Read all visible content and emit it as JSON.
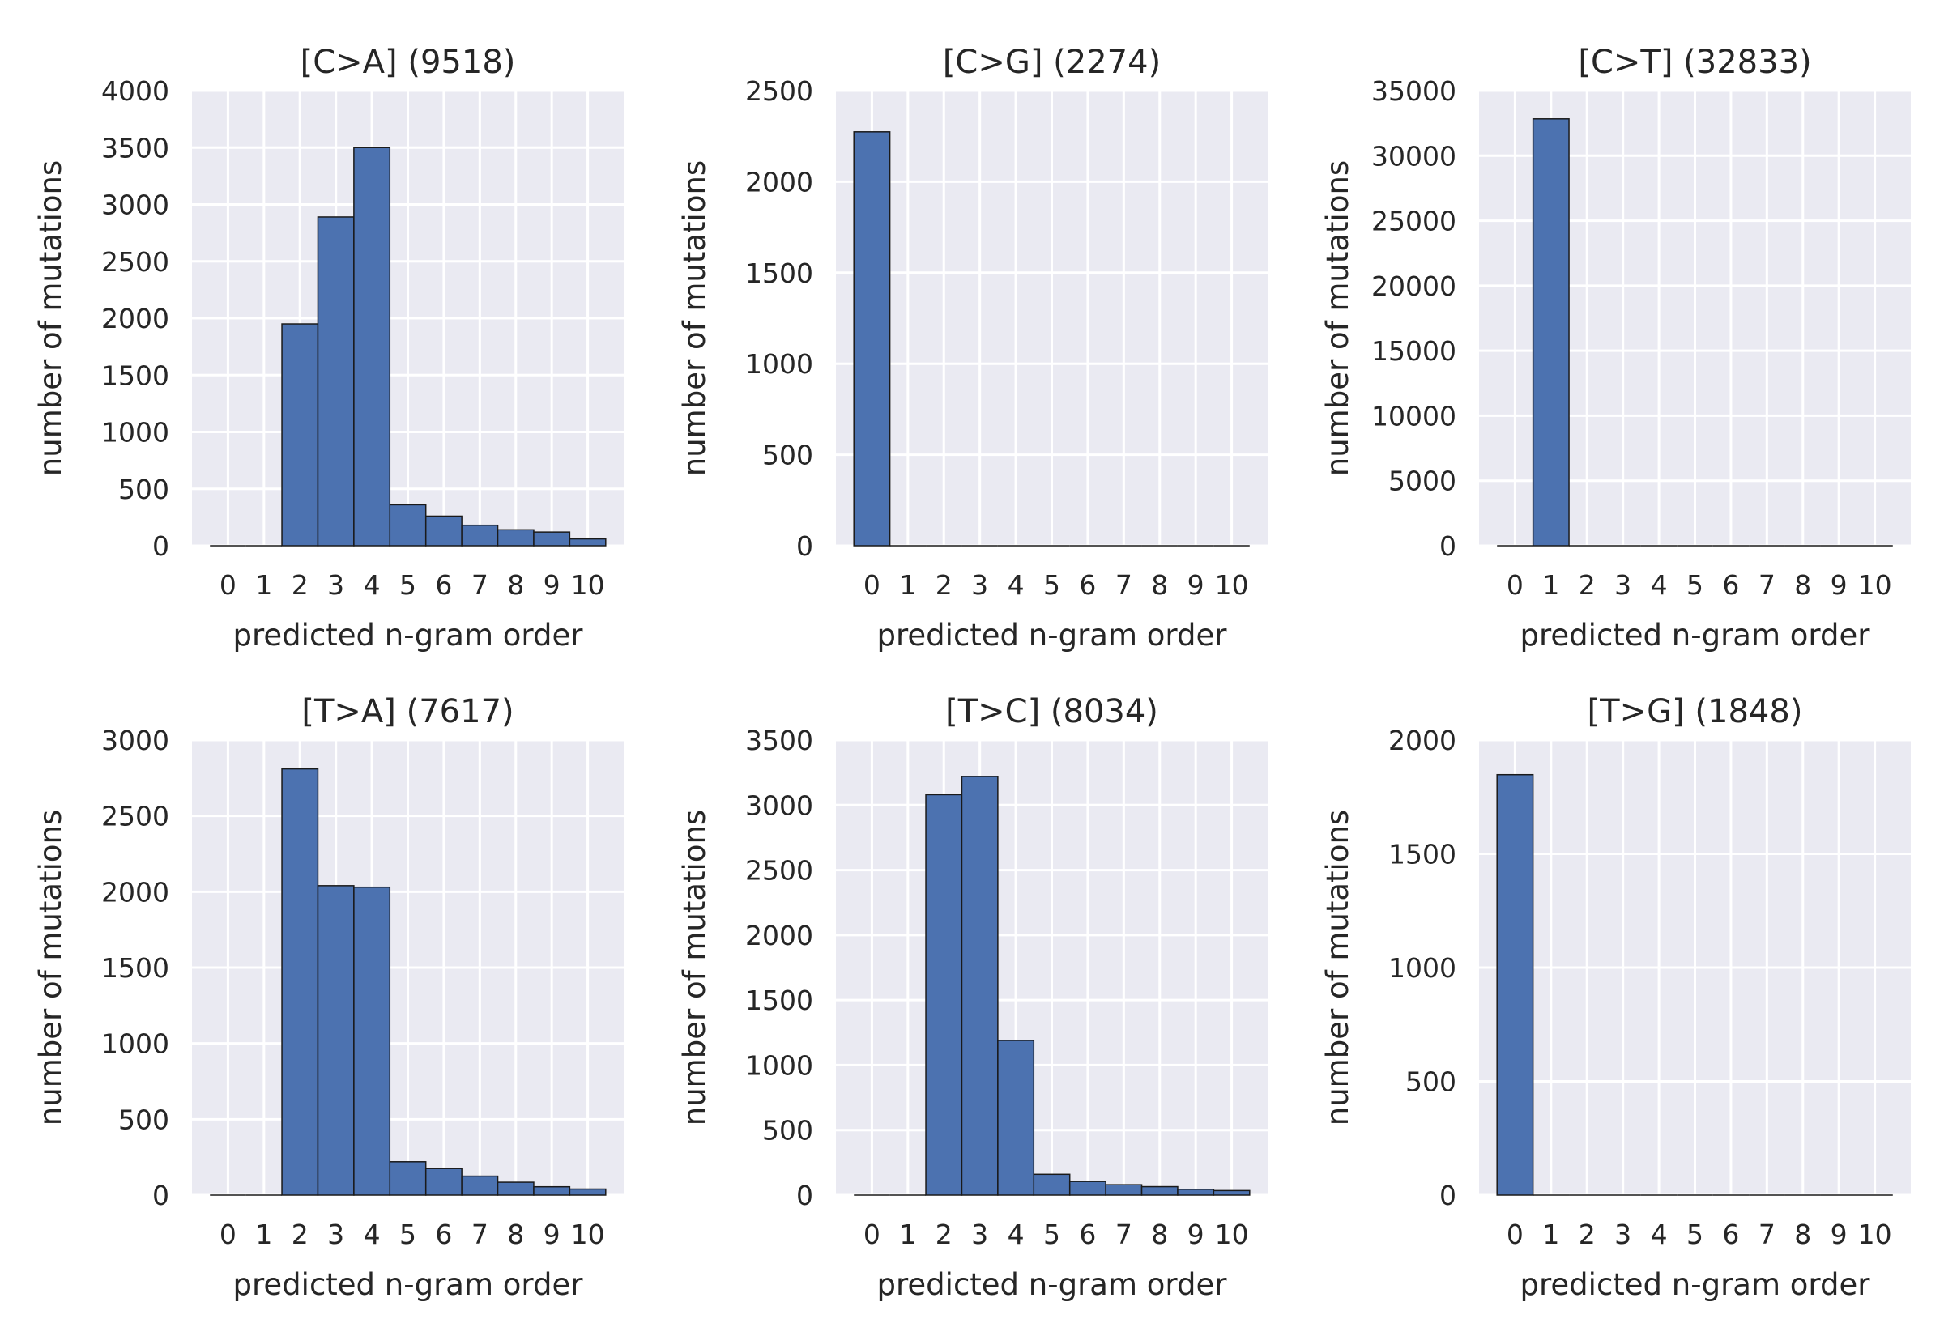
{
  "figure": {
    "bar_color": "#4C72B0",
    "background": "#EAEAF2",
    "grid_color": "#FFFFFF",
    "text_color": "#262626"
  },
  "chart_data": [
    {
      "type": "bar",
      "title": "[C>A] (9518)",
      "xlabel": "predicted n-gram order",
      "ylabel": "number of mutations",
      "categories": [
        "0",
        "1",
        "2",
        "3",
        "4",
        "5",
        "6",
        "7",
        "8",
        "9",
        "10"
      ],
      "values": [
        0,
        0,
        1950,
        2890,
        3500,
        360,
        260,
        180,
        140,
        120,
        60
      ],
      "ylim": [
        0,
        4000
      ],
      "yticks": [
        0,
        500,
        1000,
        1500,
        2000,
        2500,
        3000,
        3500,
        4000
      ],
      "grid": true
    },
    {
      "type": "bar",
      "title": "[C>G] (2274)",
      "xlabel": "predicted n-gram order",
      "ylabel": "number of mutations",
      "categories": [
        "0",
        "1",
        "2",
        "3",
        "4",
        "5",
        "6",
        "7",
        "8",
        "9",
        "10"
      ],
      "values": [
        2274,
        0,
        0,
        0,
        0,
        0,
        0,
        0,
        0,
        0,
        0
      ],
      "ylim": [
        0,
        2500
      ],
      "yticks": [
        0,
        500,
        1000,
        1500,
        2000,
        2500
      ],
      "grid": true
    },
    {
      "type": "bar",
      "title": "[C>T] (32833)",
      "xlabel": "predicted n-gram order",
      "ylabel": "number of mutations",
      "categories": [
        "0",
        "1",
        "2",
        "3",
        "4",
        "5",
        "6",
        "7",
        "8",
        "9",
        "10"
      ],
      "values": [
        0,
        32833,
        0,
        0,
        0,
        0,
        0,
        0,
        0,
        0,
        0
      ],
      "ylim": [
        0,
        35000
      ],
      "yticks": [
        0,
        5000,
        10000,
        15000,
        20000,
        25000,
        30000,
        35000
      ],
      "grid": true
    },
    {
      "type": "bar",
      "title": "[T>A] (7617)",
      "xlabel": "predicted n-gram order",
      "ylabel": "number of mutations",
      "categories": [
        "0",
        "1",
        "2",
        "3",
        "4",
        "5",
        "6",
        "7",
        "8",
        "9",
        "10"
      ],
      "values": [
        0,
        0,
        2810,
        2040,
        2030,
        220,
        175,
        125,
        85,
        55,
        40
      ],
      "ylim": [
        0,
        3000
      ],
      "yticks": [
        0,
        500,
        1000,
        1500,
        2000,
        2500,
        3000
      ],
      "grid": true
    },
    {
      "type": "bar",
      "title": "[T>C] (8034)",
      "xlabel": "predicted n-gram order",
      "ylabel": "number of mutations",
      "categories": [
        "0",
        "1",
        "2",
        "3",
        "4",
        "5",
        "6",
        "7",
        "8",
        "9",
        "10"
      ],
      "values": [
        0,
        0,
        3080,
        3220,
        1190,
        160,
        105,
        80,
        65,
        45,
        35
      ],
      "ylim": [
        0,
        3500
      ],
      "yticks": [
        0,
        500,
        1000,
        1500,
        2000,
        2500,
        3000,
        3500
      ],
      "grid": true
    },
    {
      "type": "bar",
      "title": "[T>G] (1848)",
      "xlabel": "predicted n-gram order",
      "ylabel": "number of mutations",
      "categories": [
        "0",
        "1",
        "2",
        "3",
        "4",
        "5",
        "6",
        "7",
        "8",
        "9",
        "10"
      ],
      "values": [
        1848,
        0,
        0,
        0,
        0,
        0,
        0,
        0,
        0,
        0,
        0
      ],
      "ylim": [
        0,
        2000
      ],
      "yticks": [
        0,
        500,
        1000,
        1500,
        2000
      ],
      "grid": true
    }
  ]
}
